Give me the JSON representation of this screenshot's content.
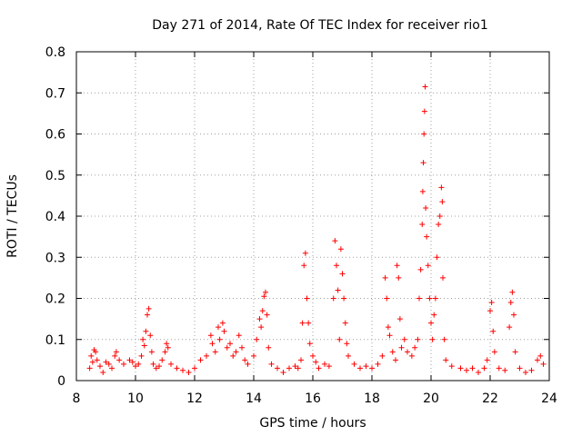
{
  "chart_data": {
    "type": "scatter",
    "title": "Day 271 of 2014, Rate Of TEC Index for receiver rio1",
    "xlabel": "GPS time / hours",
    "ylabel": "ROTI / TECUs",
    "xlim": [
      8,
      24
    ],
    "ylim": [
      0,
      0.8
    ],
    "xticks": [
      8,
      10,
      12,
      14,
      16,
      18,
      20,
      22,
      24
    ],
    "yticks": [
      0,
      0.1,
      0.2,
      0.3,
      0.4,
      0.5,
      0.6,
      0.7,
      0.8
    ],
    "xtick_labels": [
      "8",
      "10",
      "12",
      "14",
      "16",
      "18",
      "20",
      "22",
      "24"
    ],
    "ytick_labels": [
      "0",
      "0.1",
      "0.2",
      "0.3",
      "0.4",
      "0.5",
      "0.6",
      "0.7",
      "0.8"
    ],
    "grid": true,
    "marker": "+",
    "color": "#ff0000",
    "series": [
      {
        "name": "rio1",
        "points": [
          [
            8.45,
            0.03
          ],
          [
            8.5,
            0.06
          ],
          [
            8.55,
            0.045
          ],
          [
            8.6,
            0.075
          ],
          [
            8.65,
            0.07
          ],
          [
            8.7,
            0.05
          ],
          [
            8.8,
            0.035
          ],
          [
            8.9,
            0.02
          ],
          [
            9.0,
            0.045
          ],
          [
            9.1,
            0.04
          ],
          [
            9.2,
            0.03
          ],
          [
            9.3,
            0.06
          ],
          [
            9.35,
            0.07
          ],
          [
            9.45,
            0.05
          ],
          [
            9.6,
            0.04
          ],
          [
            9.8,
            0.05
          ],
          [
            9.9,
            0.045
          ],
          [
            10.0,
            0.035
          ],
          [
            10.1,
            0.04
          ],
          [
            10.2,
            0.06
          ],
          [
            10.25,
            0.1
          ],
          [
            10.3,
            0.085
          ],
          [
            10.35,
            0.12
          ],
          [
            10.4,
            0.16
          ],
          [
            10.45,
            0.175
          ],
          [
            10.5,
            0.11
          ],
          [
            10.55,
            0.07
          ],
          [
            10.6,
            0.04
          ],
          [
            10.7,
            0.03
          ],
          [
            10.8,
            0.035
          ],
          [
            10.9,
            0.05
          ],
          [
            11.0,
            0.07
          ],
          [
            11.05,
            0.09
          ],
          [
            11.1,
            0.08
          ],
          [
            11.2,
            0.04
          ],
          [
            11.4,
            0.03
          ],
          [
            11.6,
            0.025
          ],
          [
            11.8,
            0.02
          ],
          [
            12.0,
            0.03
          ],
          [
            12.2,
            0.05
          ],
          [
            12.4,
            0.06
          ],
          [
            12.55,
            0.11
          ],
          [
            12.6,
            0.09
          ],
          [
            12.7,
            0.07
          ],
          [
            12.8,
            0.13
          ],
          [
            12.85,
            0.1
          ],
          [
            12.95,
            0.14
          ],
          [
            13.0,
            0.12
          ],
          [
            13.1,
            0.08
          ],
          [
            13.2,
            0.09
          ],
          [
            13.3,
            0.06
          ],
          [
            13.4,
            0.07
          ],
          [
            13.5,
            0.11
          ],
          [
            13.6,
            0.08
          ],
          [
            13.7,
            0.05
          ],
          [
            13.8,
            0.04
          ],
          [
            14.0,
            0.06
          ],
          [
            14.1,
            0.1
          ],
          [
            14.2,
            0.15
          ],
          [
            14.25,
            0.13
          ],
          [
            14.3,
            0.17
          ],
          [
            14.35,
            0.205
          ],
          [
            14.4,
            0.215
          ],
          [
            14.45,
            0.16
          ],
          [
            14.5,
            0.08
          ],
          [
            14.6,
            0.04
          ],
          [
            14.8,
            0.03
          ],
          [
            15.0,
            0.02
          ],
          [
            15.2,
            0.03
          ],
          [
            15.4,
            0.035
          ],
          [
            15.5,
            0.03
          ],
          [
            15.6,
            0.05
          ],
          [
            15.65,
            0.14
          ],
          [
            15.7,
            0.28
          ],
          [
            15.75,
            0.31
          ],
          [
            15.8,
            0.2
          ],
          [
            15.85,
            0.14
          ],
          [
            15.9,
            0.09
          ],
          [
            16.0,
            0.06
          ],
          [
            16.1,
            0.045
          ],
          [
            16.2,
            0.03
          ],
          [
            16.4,
            0.04
          ],
          [
            16.55,
            0.035
          ],
          [
            16.7,
            0.2
          ],
          [
            16.75,
            0.34
          ],
          [
            16.8,
            0.28
          ],
          [
            16.85,
            0.22
          ],
          [
            16.9,
            0.1
          ],
          [
            16.95,
            0.32
          ],
          [
            17.0,
            0.26
          ],
          [
            17.05,
            0.2
          ],
          [
            17.1,
            0.14
          ],
          [
            17.15,
            0.09
          ],
          [
            17.2,
            0.06
          ],
          [
            17.4,
            0.04
          ],
          [
            17.6,
            0.03
          ],
          [
            17.8,
            0.035
          ],
          [
            18.0,
            0.03
          ],
          [
            18.2,
            0.04
          ],
          [
            18.35,
            0.06
          ],
          [
            18.45,
            0.25
          ],
          [
            18.5,
            0.2
          ],
          [
            18.55,
            0.13
          ],
          [
            18.6,
            0.11
          ],
          [
            18.7,
            0.07
          ],
          [
            18.8,
            0.05
          ],
          [
            18.85,
            0.28
          ],
          [
            18.9,
            0.25
          ],
          [
            18.95,
            0.15
          ],
          [
            19.0,
            0.08
          ],
          [
            19.1,
            0.1
          ],
          [
            19.2,
            0.07
          ],
          [
            19.35,
            0.06
          ],
          [
            19.45,
            0.08
          ],
          [
            19.55,
            0.1
          ],
          [
            19.6,
            0.2
          ],
          [
            19.65,
            0.27
          ],
          [
            19.7,
            0.38
          ],
          [
            19.72,
            0.46
          ],
          [
            19.74,
            0.53
          ],
          [
            19.76,
            0.6
          ],
          [
            19.78,
            0.655
          ],
          [
            19.8,
            0.715
          ],
          [
            19.82,
            0.42
          ],
          [
            19.85,
            0.35
          ],
          [
            19.9,
            0.28
          ],
          [
            19.95,
            0.2
          ],
          [
            20.0,
            0.14
          ],
          [
            20.05,
            0.1
          ],
          [
            20.1,
            0.16
          ],
          [
            20.15,
            0.2
          ],
          [
            20.2,
            0.3
          ],
          [
            20.25,
            0.38
          ],
          [
            20.3,
            0.4
          ],
          [
            20.35,
            0.47
          ],
          [
            20.38,
            0.435
          ],
          [
            20.4,
            0.25
          ],
          [
            20.45,
            0.1
          ],
          [
            20.5,
            0.05
          ],
          [
            20.7,
            0.035
          ],
          [
            21.0,
            0.03
          ],
          [
            21.2,
            0.025
          ],
          [
            21.4,
            0.03
          ],
          [
            21.6,
            0.02
          ],
          [
            21.8,
            0.03
          ],
          [
            21.9,
            0.05
          ],
          [
            22.0,
            0.17
          ],
          [
            22.05,
            0.19
          ],
          [
            22.1,
            0.12
          ],
          [
            22.15,
            0.07
          ],
          [
            22.3,
            0.03
          ],
          [
            22.5,
            0.025
          ],
          [
            22.65,
            0.13
          ],
          [
            22.7,
            0.19
          ],
          [
            22.75,
            0.215
          ],
          [
            22.8,
            0.16
          ],
          [
            22.85,
            0.07
          ],
          [
            23.0,
            0.03
          ],
          [
            23.2,
            0.02
          ],
          [
            23.4,
            0.025
          ],
          [
            23.6,
            0.05
          ],
          [
            23.7,
            0.06
          ],
          [
            23.8,
            0.04
          ]
        ]
      }
    ]
  }
}
